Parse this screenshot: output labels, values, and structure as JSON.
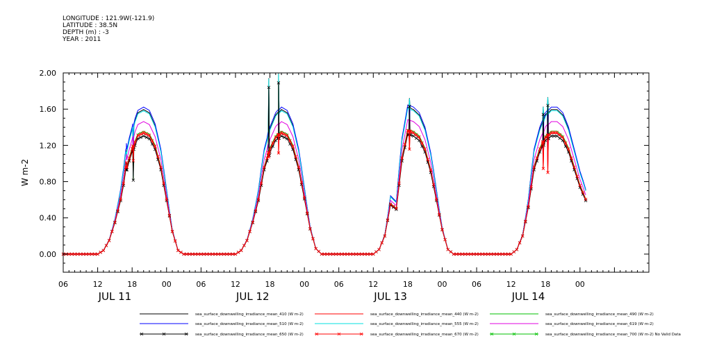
{
  "meta": [
    {
      "label": "LONGITUDE",
      "value": "121.9W(-121.9)"
    },
    {
      "label": "LATITUDE",
      "value": "38.5N"
    },
    {
      "label": "DEPTH (m)",
      "value": "-3"
    },
    {
      "label": "YEAR",
      "value": "2011"
    }
  ],
  "chart_data": {
    "type": "line",
    "title": "",
    "xlabel": "",
    "ylabel": "W m-2",
    "ylim": [
      -0.2,
      2.0
    ],
    "xlim_hours": [
      0,
      102
    ],
    "x_start": "JUL 11 06:00",
    "yticks": [
      0.0,
      0.4,
      0.8,
      1.2,
      1.6,
      2.0
    ],
    "ytick_labels": [
      "0.00",
      "0.40",
      "0.80",
      "1.20",
      "1.60",
      "2.00"
    ],
    "xticks": [
      {
        "hour": 0,
        "label": "06"
      },
      {
        "hour": 6,
        "label": "12"
      },
      {
        "hour": 12,
        "label": "18"
      },
      {
        "hour": 18,
        "label": "00"
      },
      {
        "hour": 24,
        "label": "06"
      },
      {
        "hour": 30,
        "label": "12"
      },
      {
        "hour": 36,
        "label": "18"
      },
      {
        "hour": 42,
        "label": "00"
      },
      {
        "hour": 48,
        "label": "06"
      },
      {
        "hour": 54,
        "label": "12"
      },
      {
        "hour": 60,
        "label": "18"
      },
      {
        "hour": 66,
        "label": "00"
      },
      {
        "hour": 72,
        "label": "06"
      },
      {
        "hour": 78,
        "label": "12"
      },
      {
        "hour": 84,
        "label": "18"
      },
      {
        "hour": 90,
        "label": "00"
      }
    ],
    "day_labels": [
      {
        "hour": 9,
        "label": "JUL 11"
      },
      {
        "hour": 33,
        "label": "JUL 12"
      },
      {
        "hour": 57,
        "label": "JUL 13"
      },
      {
        "hour": 81,
        "label": "JUL 14"
      }
    ],
    "envelope": {
      "hours": [
        0,
        6,
        7,
        8,
        9,
        10,
        11,
        12,
        13,
        14,
        15,
        16,
        17,
        18,
        19,
        20,
        21,
        24,
        30,
        31,
        32,
        33,
        34,
        35,
        36,
        37,
        38,
        39,
        40,
        41,
        42,
        43,
        44,
        45,
        48,
        54,
        55,
        56,
        57,
        58,
        59,
        60,
        61,
        62,
        63,
        64,
        65,
        66,
        67,
        68,
        69,
        72,
        78,
        79,
        80,
        81,
        82,
        83,
        84,
        85,
        86,
        87,
        88,
        89,
        90,
        91
      ],
      "values": [
        0,
        0,
        0.04,
        0.15,
        0.35,
        0.6,
        0.95,
        1.15,
        1.3,
        1.33,
        1.3,
        1.18,
        0.95,
        0.6,
        0.25,
        0.04,
        0,
        0,
        0,
        0.04,
        0.15,
        0.35,
        0.6,
        0.95,
        1.15,
        1.28,
        1.33,
        1.3,
        1.18,
        0.95,
        0.62,
        0.28,
        0.06,
        0,
        0,
        0,
        0.05,
        0.2,
        0.55,
        0.5,
        1.05,
        1.35,
        1.33,
        1.28,
        1.15,
        0.92,
        0.6,
        0.27,
        0.05,
        0,
        0,
        0,
        0,
        0.05,
        0.2,
        0.52,
        0.95,
        1.15,
        1.28,
        1.33,
        1.33,
        1.28,
        1.15,
        0.95,
        0.75,
        0.6
      ]
    },
    "series": [
      {
        "name": "sea_surface_downwelling_irradiance_mean_410 (W m-2)",
        "color": "#000000",
        "scale": 1.2,
        "marker": "none"
      },
      {
        "name": "sea_surface_downwelling_irradiance_mean_440 (W m-2)",
        "color": "#ff0000",
        "scale": 1.0,
        "marker": "none"
      },
      {
        "name": "sea_surface_downwelling_irradiance_mean_490 (W m-2)",
        "color": "#00c000",
        "scale": 1.02,
        "marker": "none"
      },
      {
        "name": "sea_surface_downwelling_irradiance_mean_510 (W m-2)",
        "color": "#0000ff",
        "scale": 1.22,
        "marker": "none"
      },
      {
        "name": "sea_surface_downwelling_irradiance_mean_555 (W m-2)",
        "color": "#00e0e0",
        "scale": 1.19,
        "marker": "none"
      },
      {
        "name": "sea_surface_downwelling_irradiance_mean_619 (W m-2)",
        "color": "#e000e0",
        "scale": 1.1,
        "marker": "none"
      },
      {
        "name": "sea_surface_downwelling_irradiance_mean_650 (W m-2)",
        "color": "#000000",
        "scale": 0.98,
        "marker": "x"
      },
      {
        "name": "sea_surface_downwelling_irradiance_mean_670 (W m-2)",
        "color": "#ff0000",
        "scale": 1.01,
        "marker": "x"
      },
      {
        "name": "sea_surface_downwelling_irradiance_mean_700 (W m-2) No Valid Data",
        "color": "#00c000",
        "scale": 0,
        "marker": "x",
        "no_data": true
      }
    ],
    "spikes": [
      {
        "hour": 11.0,
        "values": [
          1.0,
          1.18
        ]
      },
      {
        "hour": 12.2,
        "values": [
          0.82,
          1.2
        ]
      },
      {
        "hour": 35.8,
        "values": [
          1.85,
          1.25
        ]
      },
      {
        "hour": 37.5,
        "values": [
          1.9,
          1.3
        ]
      },
      {
        "hour": 60.3,
        "values": [
          1.64,
          1.35
        ]
      },
      {
        "hour": 83.6,
        "values": [
          1.55,
          1.1
        ]
      },
      {
        "hour": 84.4,
        "values": [
          1.65,
          1.05
        ]
      }
    ],
    "legend_position": "bottom",
    "grid": false
  }
}
